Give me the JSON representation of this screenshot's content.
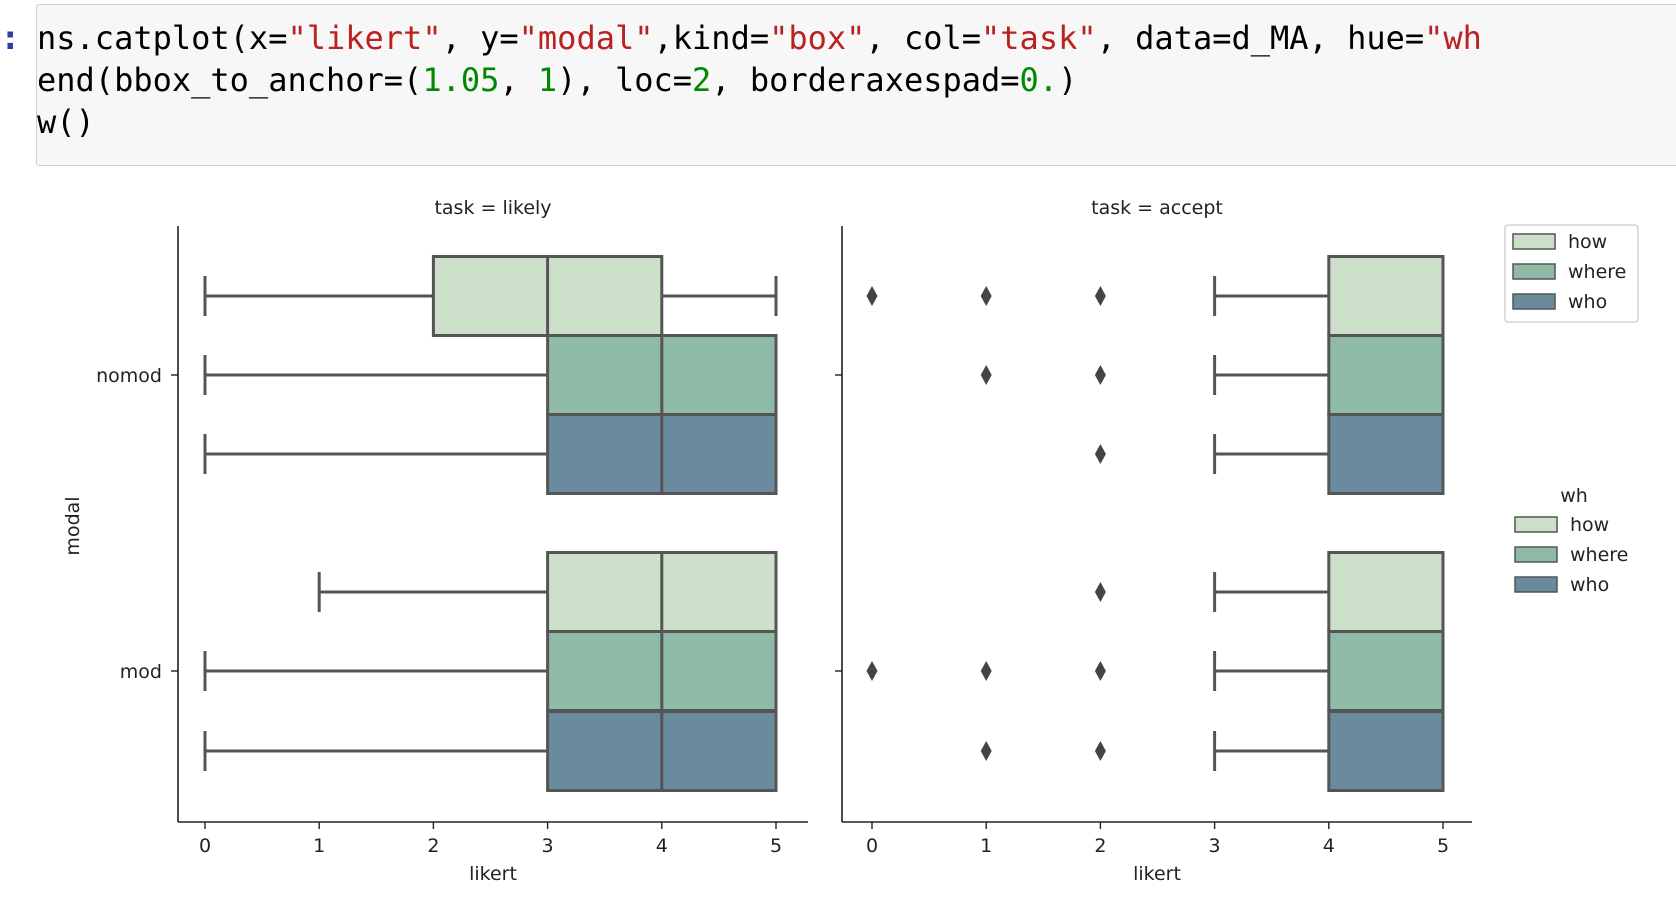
{
  "notebook": {
    "prompt": ":",
    "code_lines": [
      [
        [
          "t",
          "ns.catplot(x="
        ],
        [
          "s",
          "\"likert\""
        ],
        [
          "t",
          ", y="
        ],
        [
          "s",
          "\"modal\""
        ],
        [
          "t",
          ",kind="
        ],
        [
          "s",
          "\"box\""
        ],
        [
          "t",
          ", col="
        ],
        [
          "s",
          "\"task\""
        ],
        [
          "t",
          ", data=d_MA, hue="
        ],
        [
          "s",
          "\"wh"
        ]
      ],
      [
        [
          "t",
          "end(bbox_to_anchor=("
        ],
        [
          "n",
          "1.05"
        ],
        [
          "t",
          ", "
        ],
        [
          "n",
          "1"
        ],
        [
          "t",
          "), loc="
        ],
        [
          "n",
          "2"
        ],
        [
          "t",
          ", borderaxespad="
        ],
        [
          "n",
          "0."
        ],
        [
          "t",
          ")"
        ]
      ],
      [
        [
          "t",
          "w()"
        ]
      ]
    ]
  },
  "colors": {
    "how": "#cde0c9",
    "where": "#8fbaa6",
    "who": "#6a8a9e",
    "line": "#555555"
  },
  "chart_data": [
    {
      "type": "box",
      "title": "task = likely",
      "xlabel": "likert",
      "ylabel": "modal",
      "xlim": [
        0,
        5
      ],
      "xticks": [
        "0",
        "1",
        "2",
        "3",
        "4",
        "5"
      ],
      "categories": [
        "nomod",
        "mod"
      ],
      "series": [
        {
          "name": "how",
          "boxes": [
            {
              "whislo": 0,
              "q1": 2,
              "med": 3,
              "q3": 4,
              "whishi": 5,
              "fliers": []
            },
            {
              "whislo": 1,
              "q1": 3,
              "med": 4,
              "q3": 5,
              "whishi": 5,
              "fliers": []
            }
          ]
        },
        {
          "name": "where",
          "boxes": [
            {
              "whislo": 0,
              "q1": 3,
              "med": 4,
              "q3": 5,
              "whishi": 5,
              "fliers": []
            },
            {
              "whislo": 0,
              "q1": 3,
              "med": 4,
              "q3": 5,
              "whishi": 5,
              "fliers": []
            }
          ]
        },
        {
          "name": "who",
          "boxes": [
            {
              "whislo": 0,
              "q1": 3,
              "med": 4,
              "q3": 5,
              "whishi": 5,
              "fliers": []
            },
            {
              "whislo": 0,
              "q1": 3,
              "med": 4,
              "q3": 5,
              "whishi": 5,
              "fliers": []
            }
          ]
        }
      ]
    },
    {
      "type": "box",
      "title": "task = accept",
      "xlabel": "likert",
      "xlim": [
        0,
        5
      ],
      "xticks": [
        "0",
        "1",
        "2",
        "3",
        "4",
        "5"
      ],
      "categories": [
        "nomod",
        "mod"
      ],
      "series": [
        {
          "name": "how",
          "boxes": [
            {
              "whislo": 3,
              "q1": 4,
              "med": 5,
              "q3": 5,
              "whishi": 5,
              "fliers": [
                0,
                1,
                2
              ]
            },
            {
              "whislo": 3,
              "q1": 4,
              "med": 5,
              "q3": 5,
              "whishi": 5,
              "fliers": [
                2
              ]
            }
          ]
        },
        {
          "name": "where",
          "boxes": [
            {
              "whislo": 3,
              "q1": 4,
              "med": 5,
              "q3": 5,
              "whishi": 5,
              "fliers": [
                1,
                2
              ]
            },
            {
              "whislo": 3,
              "q1": 4,
              "med": 5,
              "q3": 5,
              "whishi": 5,
              "fliers": [
                0,
                1,
                2
              ]
            }
          ]
        },
        {
          "name": "who",
          "boxes": [
            {
              "whislo": 3,
              "q1": 4,
              "med": 5,
              "q3": 5,
              "whishi": 5,
              "fliers": [
                2
              ]
            },
            {
              "whislo": 3,
              "q1": 4,
              "med": 5,
              "q3": 5,
              "whishi": 5,
              "fliers": [
                1,
                2
              ]
            }
          ]
        }
      ]
    }
  ],
  "legends": [
    {
      "title": "",
      "placement": "top-right, outside axes",
      "entries": [
        "how",
        "where",
        "who"
      ]
    },
    {
      "title": "wh",
      "placement": "center-right, outside axes",
      "entries": [
        "how",
        "where",
        "who"
      ]
    }
  ]
}
